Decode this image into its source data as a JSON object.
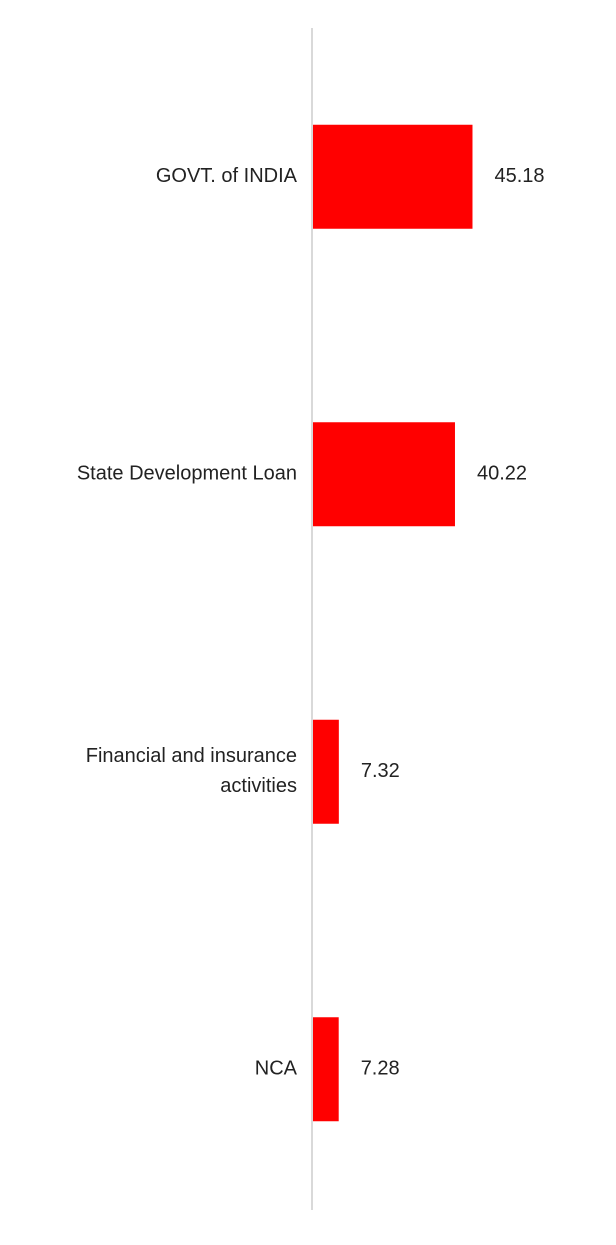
{
  "chart_data": {
    "type": "bar",
    "orientation": "horizontal",
    "categories": [
      "GOVT. of INDIA",
      "State Development Loan",
      "Financial and insurance activities",
      "NCA"
    ],
    "values": [
      45.18,
      40.22,
      7.32,
      7.28
    ],
    "color": "#ff0000"
  }
}
